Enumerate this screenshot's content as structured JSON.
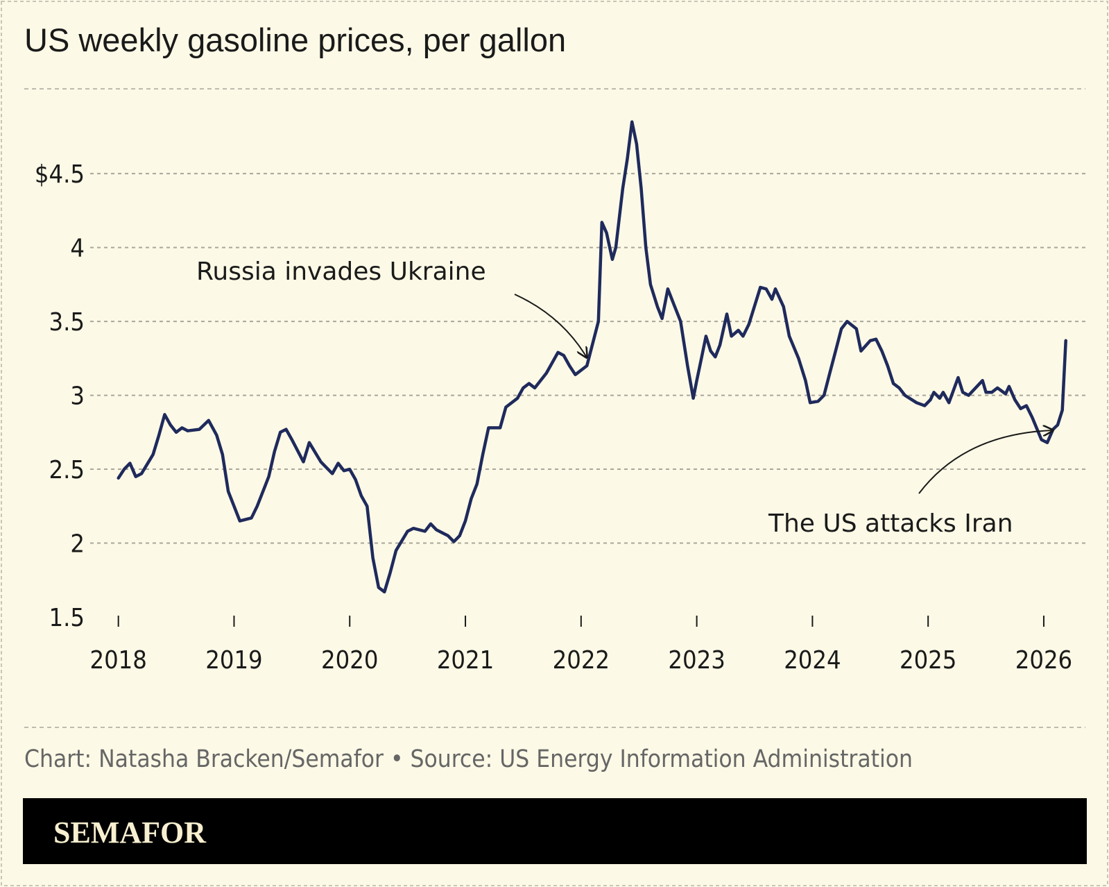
{
  "chart_data": {
    "type": "line",
    "title": "US weekly gasoline prices, per gallon",
    "source": "Chart: Natasha Bracken/Semafor • Source: US Energy Information Administration",
    "brand": "SEMAFOR",
    "annotations": [
      "Russia invades Ukraine",
      "The US attacks Iran"
    ],
    "color": "#1f2a5c",
    "grid": true,
    "xlim": [
      2017.9,
      2026.3
    ],
    "xticks": [
      2018,
      2019,
      2020,
      2021,
      2022,
      2023,
      2024,
      2025,
      2026
    ],
    "ylim": [
      1.5,
      4.9
    ],
    "yticks": [
      1.5,
      2,
      2.5,
      3,
      3.5,
      4,
      {
        "value": 4.5,
        "label": "$4.5"
      }
    ],
    "x": [
      2018.0,
      2018.05,
      2018.1,
      2018.15,
      2018.2,
      2018.3,
      2018.35,
      2018.4,
      2018.45,
      2018.5,
      2018.55,
      2018.6,
      2018.7,
      2018.78,
      2018.85,
      2018.9,
      2018.95,
      2019.05,
      2019.15,
      2019.2,
      2019.3,
      2019.35,
      2019.4,
      2019.45,
      2019.5,
      2019.6,
      2019.65,
      2019.75,
      2019.85,
      2019.9,
      2019.95,
      2020.0,
      2020.05,
      2020.1,
      2020.15,
      2020.2,
      2020.25,
      2020.3,
      2020.35,
      2020.4,
      2020.5,
      2020.55,
      2020.65,
      2020.7,
      2020.75,
      2020.85,
      2020.9,
      2020.95,
      2021.0,
      2021.05,
      2021.1,
      2021.15,
      2021.2,
      2021.3,
      2021.35,
      2021.45,
      2021.5,
      2021.55,
      2021.6,
      2021.7,
      2021.8,
      2021.85,
      2021.9,
      2021.95,
      2022.05,
      2022.1,
      2022.15,
      2022.18,
      2022.22,
      2022.27,
      2022.3,
      2022.36,
      2022.4,
      2022.44,
      2022.48,
      2022.52,
      2022.56,
      2022.6,
      2022.66,
      2022.7,
      2022.75,
      2022.8,
      2022.86,
      2022.92,
      2022.97,
      2023.0,
      2023.04,
      2023.08,
      2023.12,
      2023.16,
      2023.2,
      2023.26,
      2023.3,
      2023.36,
      2023.4,
      2023.45,
      2023.55,
      2023.6,
      2023.65,
      2023.68,
      2023.75,
      2023.8,
      2023.88,
      2023.94,
      2023.98,
      2024.05,
      2024.1,
      2024.15,
      2024.2,
      2024.25,
      2024.3,
      2024.38,
      2024.42,
      2024.5,
      2024.55,
      2024.6,
      2024.65,
      2024.7,
      2024.75,
      2024.8,
      2024.9,
      2024.97,
      2025.02,
      2025.05,
      2025.1,
      2025.13,
      2025.18,
      2025.26,
      2025.3,
      2025.35,
      2025.47,
      2025.5,
      2025.55,
      2025.6,
      2025.67,
      2025.7,
      2025.75,
      2025.8,
      2025.85,
      2025.9,
      2025.98,
      2026.03,
      2026.08,
      2026.12,
      2026.16,
      2026.19
    ],
    "values": [
      2.44,
      2.5,
      2.54,
      2.45,
      2.47,
      2.6,
      2.73,
      2.87,
      2.8,
      2.75,
      2.78,
      2.76,
      2.77,
      2.83,
      2.73,
      2.6,
      2.35,
      2.15,
      2.17,
      2.25,
      2.45,
      2.62,
      2.75,
      2.77,
      2.7,
      2.55,
      2.68,
      2.55,
      2.47,
      2.54,
      2.49,
      2.5,
      2.43,
      2.32,
      2.25,
      1.9,
      1.7,
      1.67,
      1.8,
      1.95,
      2.08,
      2.1,
      2.08,
      2.13,
      2.09,
      2.05,
      2.01,
      2.05,
      2.15,
      2.3,
      2.4,
      2.6,
      2.78,
      2.78,
      2.92,
      2.98,
      3.05,
      3.08,
      3.05,
      3.15,
      3.29,
      3.27,
      3.2,
      3.14,
      3.2,
      3.35,
      3.5,
      4.17,
      4.1,
      3.92,
      4.0,
      4.4,
      4.6,
      4.85,
      4.7,
      4.4,
      4.0,
      3.75,
      3.6,
      3.52,
      3.72,
      3.62,
      3.5,
      3.2,
      2.98,
      3.1,
      3.25,
      3.4,
      3.3,
      3.26,
      3.34,
      3.55,
      3.4,
      3.44,
      3.4,
      3.48,
      3.73,
      3.72,
      3.65,
      3.72,
      3.6,
      3.4,
      3.25,
      3.1,
      2.95,
      2.96,
      3.0,
      3.15,
      3.3,
      3.45,
      3.5,
      3.45,
      3.3,
      3.37,
      3.38,
      3.3,
      3.2,
      3.08,
      3.05,
      3.0,
      2.95,
      2.93,
      2.97,
      3.02,
      2.98,
      3.02,
      2.95,
      3.12,
      3.02,
      3.0,
      3.1,
      3.02,
      3.02,
      3.05,
      3.01,
      3.06,
      2.97,
      2.91,
      2.93,
      2.85,
      2.7,
      2.68,
      2.77,
      2.8,
      2.9,
      3.37
    ]
  }
}
